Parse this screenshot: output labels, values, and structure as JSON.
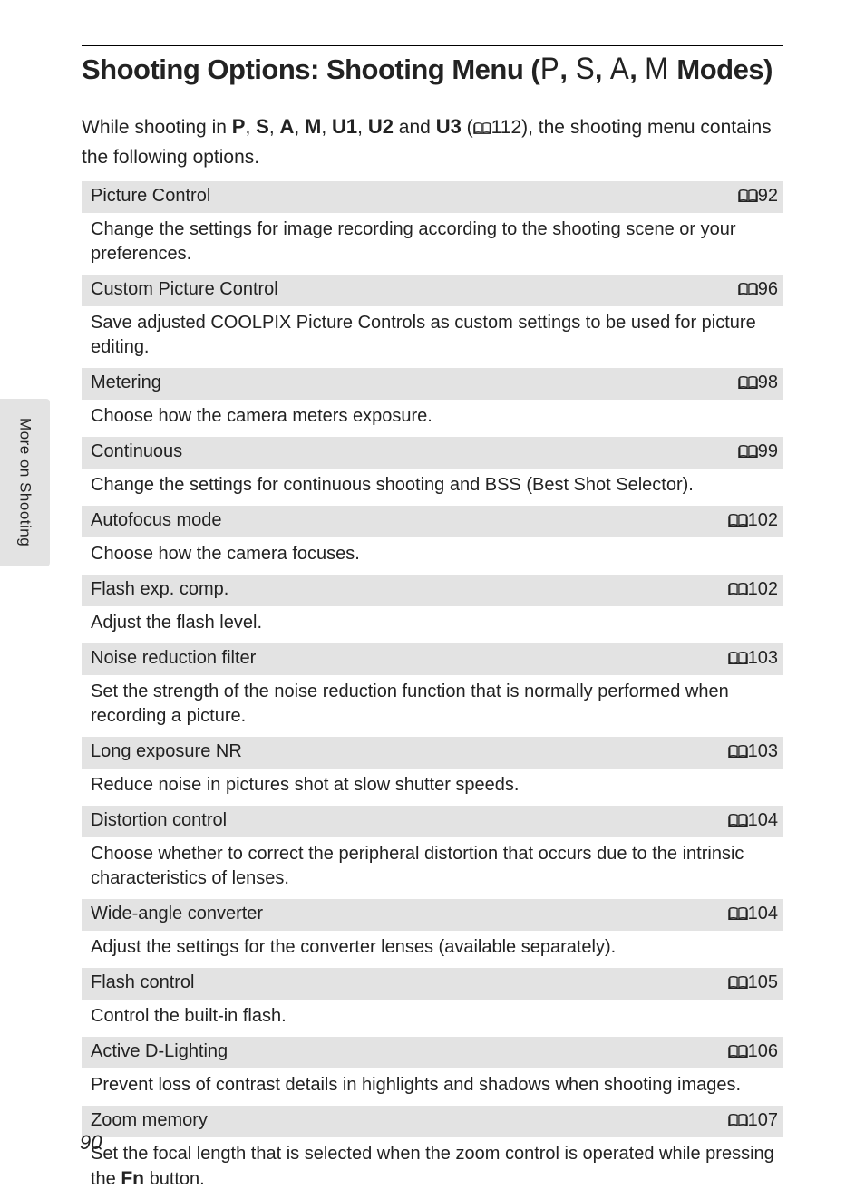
{
  "title": {
    "prefix": "Shooting Options: Shooting Menu (",
    "modes": [
      "P",
      "S",
      "A",
      "M"
    ],
    "suffix": " Modes)"
  },
  "intro": {
    "text_a": "While shooting in ",
    "modes": [
      "P",
      "S",
      "A",
      "M",
      "U1",
      "U2",
      "U3"
    ],
    "text_b": " and ",
    "ref_page": "112",
    "text_c": "), the shooting menu contains the following options."
  },
  "side_tab": "More on Shooting",
  "page_number": "90",
  "colors": {
    "row_header_bg": "#e3e3e3",
    "page_bg": "#ffffff",
    "text": "#222222"
  },
  "menu_items": [
    {
      "name": "Picture Control",
      "page": "92",
      "desc": "Change the settings for image recording according to the shooting scene or your preferences."
    },
    {
      "name": "Custom Picture Control",
      "page": "96",
      "desc": "Save adjusted COOLPIX Picture Controls as custom settings to be used for picture editing."
    },
    {
      "name": "Metering",
      "page": "98",
      "desc": "Choose how the camera meters exposure."
    },
    {
      "name": "Continuous",
      "page": "99",
      "desc": "Change the settings for continuous shooting and BSS  (Best Shot Selector)."
    },
    {
      "name": "Autofocus mode",
      "page": "102",
      "desc": "Choose how the camera focuses."
    },
    {
      "name": "Flash exp. comp.",
      "page": "102",
      "desc": "Adjust the flash level."
    },
    {
      "name": "Noise reduction filter",
      "page": "103",
      "desc": "Set the strength of the noise reduction function that is normally performed when recording a picture."
    },
    {
      "name": "Long exposure NR",
      "page": "103",
      "desc": "Reduce noise in pictures shot at slow shutter speeds."
    },
    {
      "name": "Distortion control",
      "page": "104",
      "desc": "Choose whether to correct the peripheral distortion that occurs due to the intrinsic characteristics of lenses."
    },
    {
      "name": "Wide-angle converter",
      "page": "104",
      "desc": "Adjust the settings for the converter lenses (available separately)."
    },
    {
      "name": "Flash control",
      "page": "105",
      "desc": "Control the built-in flash."
    },
    {
      "name": "Active D-Lighting",
      "page": "106",
      "desc": "Prevent loss of contrast details in highlights and shadows when shooting images."
    },
    {
      "name": "Zoom memory",
      "page": "107",
      "desc_a": "Set the focal length that is selected when the zoom control is operated while pressing the ",
      "fn": "Fn",
      "desc_b": " button."
    }
  ]
}
